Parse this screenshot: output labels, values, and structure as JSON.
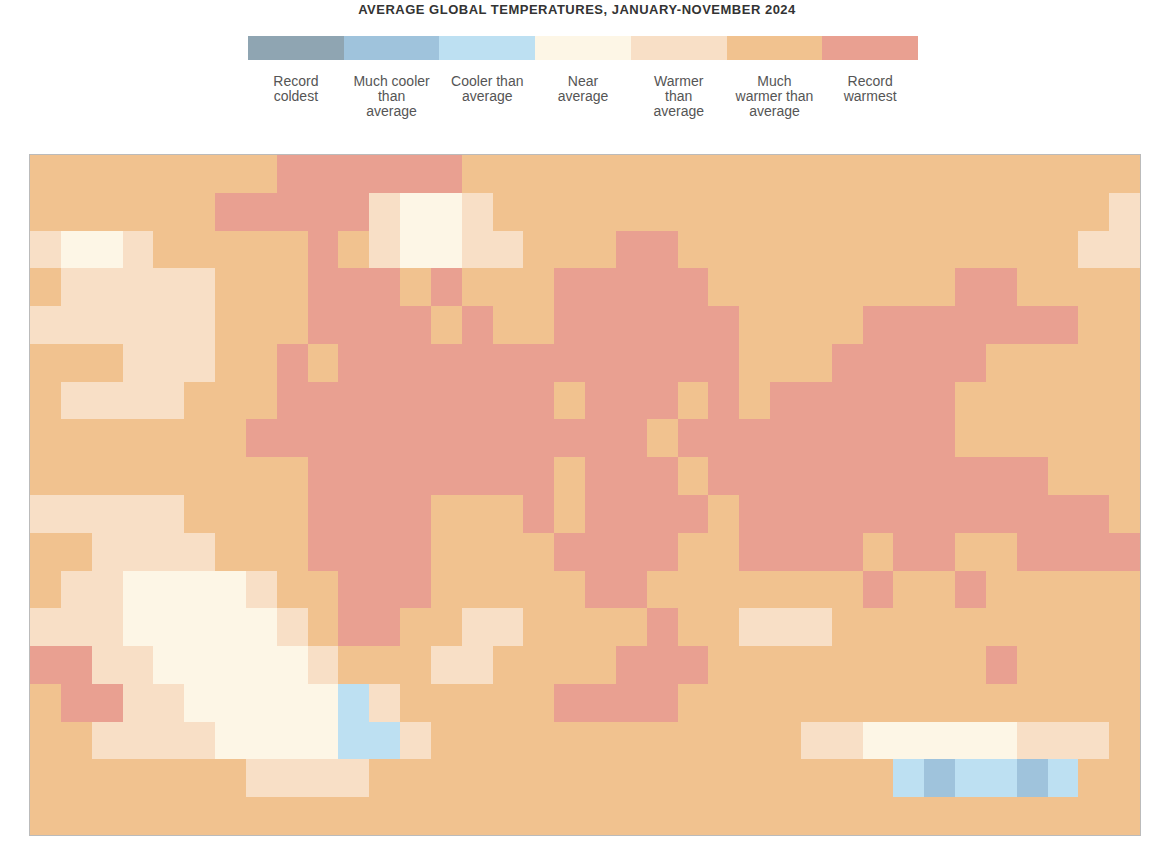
{
  "chart_data": {
    "type": "heatmap",
    "title": "AVERAGE GLOBAL TEMPERATURES, JANUARY-NOVEMBER 2024",
    "categories": [
      "Record coldest",
      "Much cooler than average",
      "Cooler than average",
      "Near average",
      "Warmer than average",
      "Much warmer than average",
      "Record warmest"
    ],
    "colors": [
      "#8fa5b2",
      "#9fc3dc",
      "#bde0f2",
      "#fdf6e6",
      "#f8dfc6",
      "#f1c28f",
      "#e9a091"
    ],
    "x": [
      -175,
      -165,
      -155,
      -145,
      -135,
      -125,
      -115,
      -105,
      -95,
      -85,
      -75,
      -65,
      -55,
      -45,
      -35,
      -25,
      -15,
      -5,
      5,
      15,
      25,
      35,
      45,
      55,
      65,
      75,
      85,
      95,
      105,
      115,
      125,
      135,
      145,
      155,
      165,
      175
    ],
    "y": [
      85,
      75,
      65,
      55,
      45,
      35,
      25,
      15,
      5,
      -5,
      -15,
      -25,
      -35,
      -45,
      -55,
      -65,
      -75,
      -85
    ],
    "cells": [
      [
        5,
        5,
        5,
        5,
        5,
        5,
        5,
        5,
        6,
        6,
        6,
        6,
        6,
        6,
        5,
        5,
        5,
        5,
        5,
        5,
        5,
        5,
        5,
        5,
        5,
        5,
        5,
        5,
        5,
        5,
        5,
        5,
        5,
        5,
        5,
        5
      ],
      [
        5,
        5,
        5,
        5,
        5,
        5,
        6,
        6,
        6,
        6,
        6,
        4,
        3,
        3,
        4,
        5,
        5,
        5,
        5,
        5,
        5,
        5,
        5,
        5,
        5,
        5,
        5,
        5,
        5,
        5,
        5,
        5,
        5,
        5,
        5,
        4
      ],
      [
        4,
        3,
        3,
        4,
        5,
        5,
        5,
        5,
        5,
        6,
        5,
        4,
        3,
        3,
        4,
        4,
        5,
        5,
        5,
        6,
        6,
        5,
        5,
        5,
        5,
        5,
        5,
        5,
        5,
        5,
        5,
        5,
        5,
        5,
        4,
        4
      ],
      [
        5,
        4,
        4,
        4,
        4,
        4,
        5,
        5,
        5,
        6,
        6,
        6,
        5,
        6,
        5,
        5,
        5,
        6,
        6,
        6,
        6,
        6,
        5,
        5,
        5,
        5,
        5,
        5,
        5,
        5,
        6,
        6,
        5,
        5,
        5,
        5
      ],
      [
        4,
        4,
        4,
        4,
        4,
        4,
        5,
        5,
        5,
        6,
        6,
        6,
        6,
        5,
        6,
        5,
        5,
        6,
        6,
        6,
        6,
        6,
        6,
        5,
        5,
        5,
        5,
        6,
        6,
        6,
        6,
        6,
        6,
        6,
        5,
        5
      ],
      [
        5,
        5,
        5,
        4,
        4,
        4,
        5,
        5,
        6,
        5,
        6,
        6,
        6,
        6,
        6,
        6,
        6,
        6,
        6,
        6,
        6,
        6,
        6,
        5,
        5,
        5,
        6,
        6,
        6,
        6,
        6,
        5,
        5,
        5,
        5,
        5
      ],
      [
        5,
        4,
        4,
        4,
        4,
        5,
        5,
        5,
        6,
        6,
        6,
        6,
        6,
        6,
        6,
        6,
        6,
        5,
        6,
        6,
        6,
        5,
        6,
        5,
        6,
        6,
        6,
        6,
        6,
        6,
        5,
        5,
        5,
        5,
        5,
        5
      ],
      [
        5,
        5,
        5,
        5,
        5,
        5,
        5,
        6,
        6,
        6,
        6,
        6,
        6,
        6,
        6,
        6,
        6,
        6,
        6,
        6,
        5,
        6,
        6,
        6,
        6,
        6,
        6,
        6,
        6,
        6,
        5,
        5,
        5,
        5,
        5,
        5
      ],
      [
        5,
        5,
        5,
        5,
        5,
        5,
        5,
        5,
        5,
        6,
        6,
        6,
        6,
        6,
        6,
        6,
        6,
        5,
        6,
        6,
        6,
        5,
        6,
        6,
        6,
        6,
        6,
        6,
        6,
        6,
        6,
        6,
        6,
        5,
        5,
        5
      ],
      [
        4,
        4,
        4,
        4,
        4,
        5,
        5,
        5,
        5,
        6,
        6,
        6,
        6,
        5,
        5,
        5,
        6,
        5,
        6,
        6,
        6,
        6,
        5,
        6,
        6,
        6,
        6,
        6,
        6,
        6,
        6,
        6,
        6,
        6,
        6,
        5
      ],
      [
        5,
        5,
        4,
        4,
        4,
        4,
        5,
        5,
        5,
        6,
        6,
        6,
        6,
        5,
        5,
        5,
        5,
        6,
        6,
        6,
        6,
        5,
        5,
        6,
        6,
        6,
        6,
        5,
        6,
        6,
        5,
        5,
        6,
        6,
        6,
        6
      ],
      [
        5,
        4,
        4,
        3,
        3,
        3,
        3,
        4,
        5,
        5,
        6,
        6,
        6,
        5,
        5,
        5,
        5,
        5,
        6,
        6,
        5,
        5,
        5,
        5,
        5,
        5,
        5,
        6,
        5,
        5,
        6,
        5,
        5,
        5,
        5,
        5
      ],
      [
        4,
        4,
        4,
        3,
        3,
        3,
        3,
        3,
        4,
        5,
        6,
        6,
        5,
        5,
        4,
        4,
        5,
        5,
        5,
        5,
        6,
        5,
        5,
        4,
        4,
        4,
        5,
        5,
        5,
        5,
        5,
        5,
        5,
        5,
        5,
        5
      ],
      [
        6,
        6,
        4,
        4,
        3,
        3,
        3,
        3,
        3,
        4,
        5,
        5,
        5,
        4,
        4,
        5,
        5,
        5,
        5,
        6,
        6,
        6,
        5,
        5,
        5,
        5,
        5,
        5,
        5,
        5,
        5,
        6,
        5,
        5,
        5,
        5
      ],
      [
        5,
        6,
        6,
        4,
        4,
        3,
        3,
        3,
        3,
        3,
        2,
        4,
        5,
        5,
        5,
        5,
        5,
        6,
        6,
        6,
        6,
        5,
        5,
        5,
        5,
        5,
        5,
        5,
        5,
        5,
        5,
        5,
        5,
        5,
        5,
        5
      ],
      [
        5,
        5,
        4,
        4,
        4,
        4,
        3,
        3,
        3,
        3,
        2,
        2,
        4,
        5,
        5,
        5,
        5,
        5,
        5,
        5,
        5,
        5,
        5,
        5,
        5,
        4,
        4,
        3,
        3,
        3,
        3,
        3,
        4,
        4,
        4,
        5
      ],
      [
        5,
        5,
        5,
        5,
        5,
        5,
        5,
        4,
        4,
        4,
        4,
        5,
        5,
        5,
        5,
        5,
        5,
        5,
        5,
        5,
        5,
        5,
        5,
        5,
        5,
        5,
        5,
        5,
        2,
        1,
        2,
        2,
        1,
        2,
        5,
        5
      ],
      [
        5,
        5,
        5,
        5,
        5,
        5,
        5,
        5,
        5,
        5,
        5,
        5,
        5,
        5,
        5,
        5,
        5,
        5,
        5,
        5,
        5,
        5,
        5,
        5,
        5,
        5,
        5,
        5,
        5,
        5,
        5,
        5,
        5,
        5,
        5,
        5
      ]
    ],
    "xlim": [
      -180,
      180
    ],
    "ylim": [
      -90,
      90
    ],
    "tick_labels": false
  }
}
